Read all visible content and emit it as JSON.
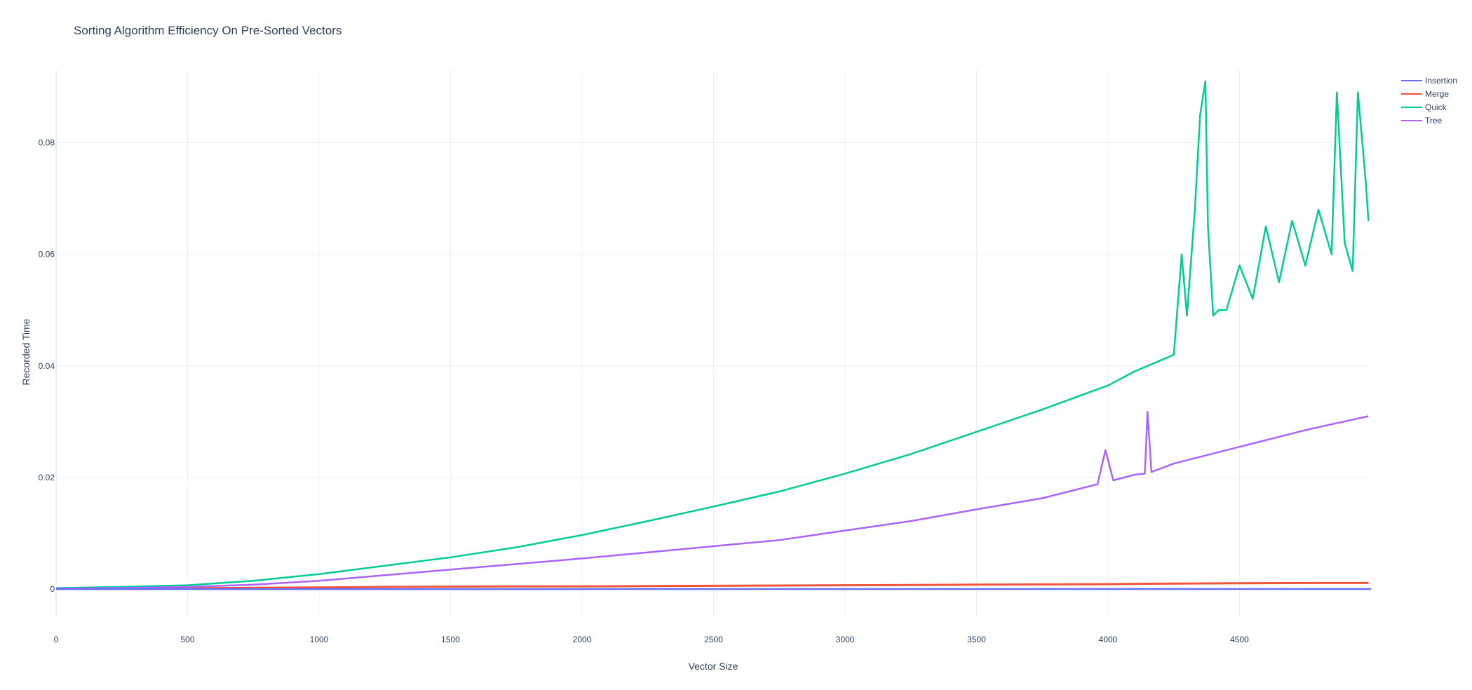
{
  "chart_data": {
    "type": "line",
    "title": "Sorting Algorithm Efficiency On Pre-Sorted Vectors",
    "xlabel": "Vector Size",
    "ylabel": "Recorded Time",
    "xlim": [
      0,
      5000
    ],
    "ylim": [
      -0.005,
      0.093
    ],
    "x_ticks": [
      0,
      500,
      1000,
      1500,
      2000,
      2500,
      3000,
      3500,
      4000,
      4500
    ],
    "x_tick_labels": [
      "0",
      "500",
      "1000",
      "1500",
      "2000",
      "2500",
      "3000",
      "3500",
      "4000",
      "4500"
    ],
    "y_ticks": [
      0,
      0.02,
      0.04,
      0.06,
      0.08
    ],
    "y_tick_labels": [
      "0",
      "0.02",
      "0.04",
      "0.06",
      "0.08"
    ],
    "grid": true,
    "legend_position": "top-right",
    "series": [
      {
        "name": "Insertion",
        "color": "#636efa",
        "x": [
          0,
          5000
        ],
        "y": [
          1e-05,
          2e-05
        ]
      },
      {
        "name": "Merge",
        "color": "#ef553b",
        "x": [
          0,
          250,
          500,
          750,
          1000,
          1250,
          1500,
          1750,
          2000,
          2250,
          2500,
          2750,
          3000,
          3250,
          3500,
          3750,
          4000,
          4250,
          4500,
          4750,
          4990
        ],
        "y": [
          5e-05,
          0.0001,
          0.00015,
          0.00025,
          0.0003,
          0.0004,
          0.00045,
          0.0005,
          0.0005,
          0.00055,
          0.0006,
          0.00065,
          0.0007,
          0.00075,
          0.0008,
          0.00085,
          0.0009,
          0.001,
          0.00105,
          0.0011,
          0.0011
        ]
      },
      {
        "name": "Quick",
        "color": "#00cc96",
        "x": [
          0,
          250,
          500,
          750,
          1000,
          1250,
          1500,
          1750,
          2000,
          2250,
          2500,
          2750,
          3000,
          3250,
          3500,
          3750,
          4000,
          4100,
          4200,
          4250,
          4280,
          4300,
          4330,
          4350,
          4370,
          4380,
          4400,
          4420,
          4450,
          4500,
          4550,
          4600,
          4650,
          4700,
          4750,
          4800,
          4850,
          4870,
          4900,
          4930,
          4950,
          4980,
          4990
        ],
        "y": [
          0.0002,
          0.0004,
          0.0007,
          0.0015,
          0.0027,
          0.0042,
          0.0057,
          0.0075,
          0.0097,
          0.0122,
          0.0148,
          0.0175,
          0.0207,
          0.0242,
          0.0282,
          0.0322,
          0.0365,
          0.039,
          0.041,
          0.042,
          0.06,
          0.049,
          0.068,
          0.085,
          0.091,
          0.065,
          0.049,
          0.05,
          0.05,
          0.058,
          0.052,
          0.065,
          0.055,
          0.066,
          0.058,
          0.068,
          0.06,
          0.089,
          0.062,
          0.057,
          0.089,
          0.073,
          0.066
        ]
      },
      {
        "name": "Tree",
        "color": "#ab63fa",
        "x": [
          0,
          250,
          500,
          750,
          1000,
          1250,
          1500,
          1750,
          2000,
          2250,
          2500,
          2750,
          3000,
          3250,
          3500,
          3750,
          3960,
          3990,
          4020,
          4100,
          4140,
          4150,
          4165,
          4250,
          4500,
          4750,
          4990
        ],
        "y": [
          0.0001,
          0.0002,
          0.0004,
          0.0008,
          0.0015,
          0.0025,
          0.0035,
          0.0045,
          0.0055,
          0.0066,
          0.0077,
          0.0088,
          0.0105,
          0.0122,
          0.0143,
          0.0163,
          0.0188,
          0.0249,
          0.0195,
          0.0205,
          0.0207,
          0.0318,
          0.021,
          0.0225,
          0.0255,
          0.0285,
          0.031
        ]
      }
    ]
  }
}
